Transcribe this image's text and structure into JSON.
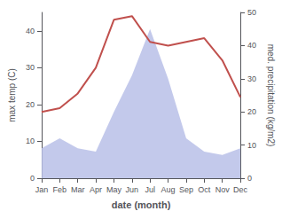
{
  "chart_data": {
    "type": "line",
    "xlabel": "date (month)",
    "ylabel": "max temp (C)",
    "y2label": "med. precipitation (kg/m2)",
    "categories": [
      "Jan",
      "Feb",
      "Mar",
      "Apr",
      "May",
      "Jun",
      "Jul",
      "Aug",
      "Sep",
      "Oct",
      "Nov",
      "Dec"
    ],
    "series": [
      {
        "type": "area",
        "axis": "y2",
        "color": "#b8bfe8",
        "values": [
          9,
          12,
          9,
          8,
          20,
          31,
          45,
          30,
          12,
          8,
          7,
          9
        ]
      },
      {
        "type": "line",
        "color": "#c0504d",
        "values": [
          18,
          19,
          23,
          30,
          43,
          44,
          37,
          36,
          37,
          38,
          32,
          22
        ]
      }
    ],
    "ylim": [
      0,
      45
    ],
    "yticks": [
      0,
      10,
      20,
      30,
      40
    ],
    "y2lim": [
      0,
      50
    ],
    "y2ticks": [
      0,
      10,
      20,
      30,
      40,
      50
    ],
    "grid": false
  }
}
